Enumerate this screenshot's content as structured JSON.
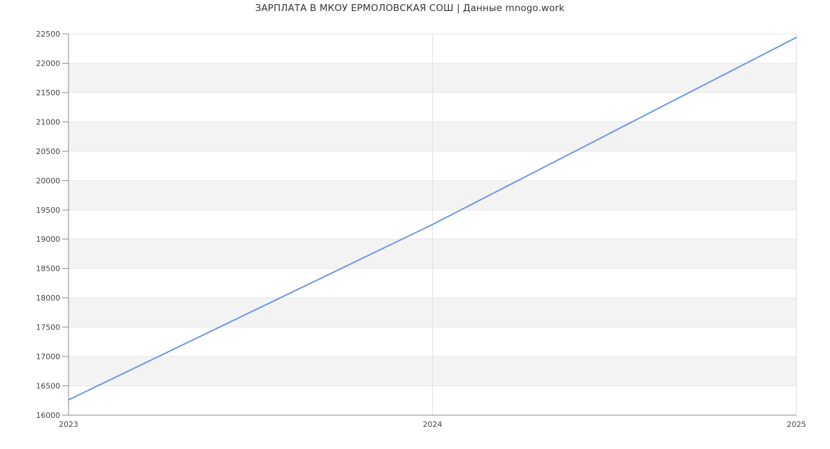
{
  "chart_data": {
    "type": "line",
    "title": "ЗАРПЛАТА В МКОУ ЕРМОЛОВСКАЯ СОШ | Данные mnogo.work",
    "x": [
      2023,
      2024,
      2025
    ],
    "xtick_labels": [
      "2023",
      "2024",
      "2025"
    ],
    "series": [
      {
        "name": "ЗАРПЛАТА",
        "values": [
          16260,
          19250,
          22440
        ]
      }
    ],
    "xlabel": "",
    "ylabel": "",
    "ylim": [
      16000,
      22500
    ],
    "ytick_step": 500,
    "ytick_labels": [
      "16000",
      "16500",
      "17000",
      "17500",
      "18000",
      "18500",
      "19000",
      "19500",
      "20000",
      "20500",
      "21000",
      "21500",
      "22000",
      "22500"
    ],
    "grid": true,
    "legend": false,
    "plot_bands_alternating": true,
    "colors": {
      "line": "#6e96e6",
      "band": "#f3f3f3",
      "h_gridline": "#e7e7e7",
      "v_gridline": "#e2e2e2",
      "axis": "#888888",
      "tick_text": "#444444",
      "title_text": "#333333",
      "background": "#ffffff"
    }
  }
}
